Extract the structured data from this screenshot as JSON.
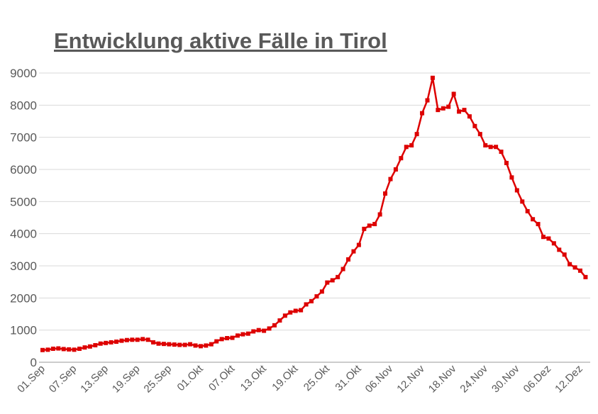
{
  "chart_data": {
    "type": "line",
    "title": "Entwicklung aktive Fälle in Tirol",
    "categories": [
      "01.Sep",
      null,
      null,
      null,
      null,
      null,
      "07.Sep",
      null,
      null,
      null,
      null,
      null,
      "13.Sep",
      null,
      null,
      null,
      null,
      null,
      "19.Sep",
      null,
      null,
      null,
      null,
      null,
      "25.Sep",
      null,
      null,
      null,
      null,
      null,
      "01.Okt",
      null,
      null,
      null,
      null,
      null,
      "07.Okt",
      null,
      null,
      null,
      null,
      null,
      "13.Okt",
      null,
      null,
      null,
      null,
      null,
      "19.Okt",
      null,
      null,
      null,
      null,
      null,
      "25.Okt",
      null,
      null,
      null,
      null,
      null,
      "31.Okt",
      null,
      null,
      null,
      null,
      null,
      "06.Nov",
      null,
      null,
      null,
      null,
      null,
      "12.Nov",
      null,
      null,
      null,
      null,
      null,
      "18.Nov",
      null,
      null,
      null,
      null,
      null,
      "24.Nov",
      null,
      null,
      null,
      null,
      null,
      "30.Nov",
      null,
      null,
      null,
      null,
      null,
      "06.Dez",
      null,
      null,
      null,
      null,
      null,
      "12.Dez",
      null
    ],
    "series": [
      {
        "color": "#dd0000",
        "values": [
          380,
          390,
          420,
          430,
          410,
          400,
          390,
          420,
          460,
          490,
          530,
          580,
          600,
          620,
          640,
          670,
          690,
          700,
          700,
          720,
          700,
          620,
          580,
          570,
          560,
          550,
          540,
          540,
          560,
          520,
          500,
          520,
          560,
          650,
          720,
          750,
          760,
          830,
          870,
          890,
          960,
          1000,
          980,
          1050,
          1150,
          1300,
          1450,
          1550,
          1600,
          1620,
          1800,
          1900,
          2050,
          2200,
          2480,
          2550,
          2650,
          2900,
          3200,
          3450,
          3650,
          4150,
          4250,
          4300,
          4600,
          5250,
          5700,
          6000,
          6350,
          6700,
          6750,
          7100,
          7750,
          8150,
          8850,
          7850,
          7900,
          7950,
          8350,
          7800,
          7850,
          7650,
          7350,
          7100,
          6750,
          6700,
          6700,
          6550,
          6200,
          5750,
          5350,
          5000,
          4700,
          4450,
          4300,
          3900,
          3850,
          3700,
          3500,
          3350,
          3050,
          2950,
          2850,
          2650
        ]
      }
    ],
    "ylim": [
      0,
      9000
    ],
    "yticks": [
      0,
      1000,
      2000,
      3000,
      4000,
      5000,
      6000,
      7000,
      8000,
      9000
    ],
    "grid": true
  }
}
